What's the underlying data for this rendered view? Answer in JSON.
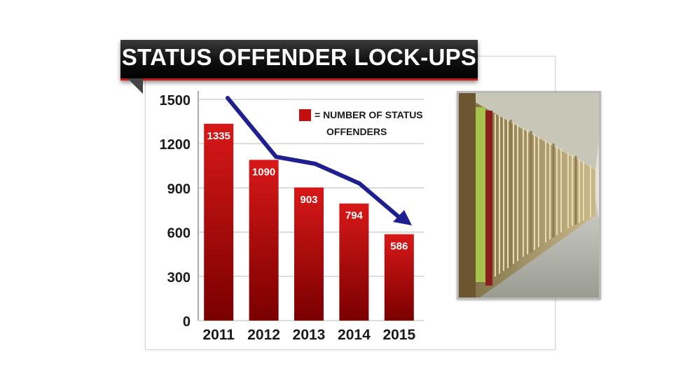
{
  "banner": {
    "title": "STATUS OFFENDER LOCK-UPS"
  },
  "legend": {
    "line1": "= NUMBER OF STATUS",
    "line2": "OFFENDERS",
    "swatch_color": "#c40d0d"
  },
  "colors": {
    "bar_top": "#d81818",
    "bar_bottom": "#7a0000",
    "arrow": "#1f1f8f",
    "grid": "#bdbdbd"
  },
  "photo": {
    "icon": "jail-cells-photo"
  },
  "chart_data": {
    "type": "bar",
    "title": "STATUS OFFENDER LOCK-UPS",
    "categories": [
      "2011",
      "2012",
      "2013",
      "2014",
      "2015"
    ],
    "values": [
      1335,
      1090,
      903,
      794,
      586
    ],
    "data_labels": [
      "1335",
      "1090",
      "903",
      "794",
      "586"
    ],
    "ylim": [
      0,
      1500
    ],
    "yticks": [
      0,
      300,
      600,
      900,
      1200,
      1500
    ],
    "grid": true,
    "legend_placement": "top-right",
    "trend_arrow": {
      "direction": "downward",
      "color": "#1f1f8f"
    }
  }
}
